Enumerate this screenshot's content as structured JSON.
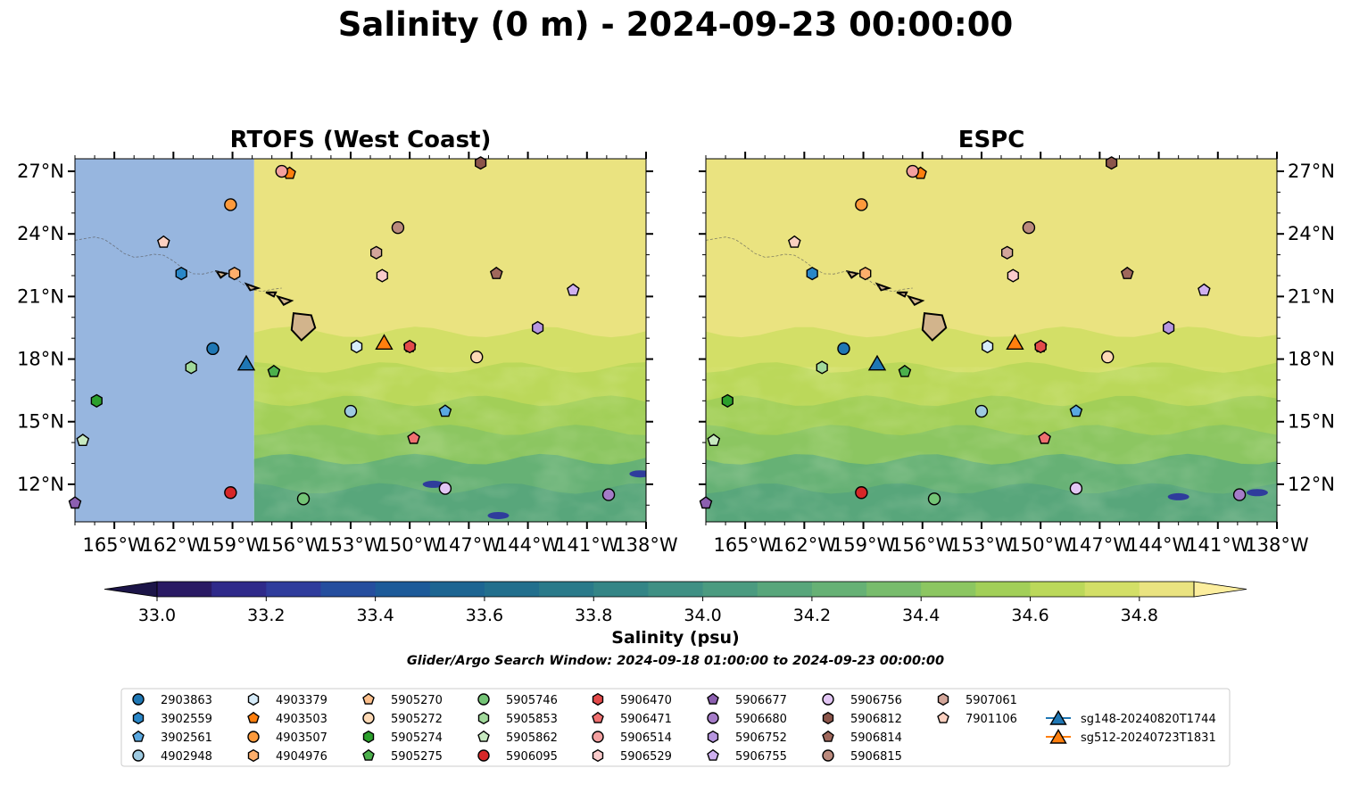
{
  "suptitle": "Salinity (0 m) - 2024-09-23 00:00:00",
  "panels": [
    {
      "title": "RTOFS (West Coast)"
    },
    {
      "title": "ESPC"
    }
  ],
  "colorbar": {
    "label": "Salinity (psu)",
    "ticks": [
      33.0,
      33.2,
      33.4,
      33.6,
      33.8,
      34.0,
      34.2,
      34.4,
      34.6,
      34.8
    ],
    "tick_labels": [
      "33.0",
      "33.2",
      "33.4",
      "33.6",
      "33.8",
      "34.0",
      "34.2",
      "34.4",
      "34.6",
      "34.8"
    ],
    "min": 33.0,
    "max": 34.9,
    "extend": "both",
    "colormap": "haline",
    "colors": [
      "#2a1a64",
      "#2f2a8a",
      "#2f3c9c",
      "#254e9e",
      "#1c5a99",
      "#1d6592",
      "#226f8d",
      "#2a7a8a",
      "#348586",
      "#3f9084",
      "#4b9b80",
      "#58a67b",
      "#66b175",
      "#78bc6c",
      "#8cc661",
      "#a2cf58",
      "#bbd85a",
      "#d3df67",
      "#eae380"
    ],
    "under_color": "#1c1548",
    "over_color": "#fcee9e"
  },
  "search_window": "Glider/Argo Search Window: 2024-09-18 01:00:00 to 2024-09-23 00:00:00",
  "chart_data": {
    "type": "map",
    "variable": "Salinity",
    "depth": "0 m",
    "units": "psu",
    "lon_range": [
      -167,
      -138
    ],
    "lat_range": [
      10.2,
      27.6
    ],
    "x_ticks": [
      -165,
      -162,
      -159,
      -156,
      -153,
      -150,
      -147,
      -144,
      -141,
      -138
    ],
    "x_tick_labels": [
      "165°W",
      "162°W",
      "159°W",
      "156°W",
      "153°W",
      "150°W",
      "147°W",
      "144°W",
      "141°W",
      "138°W"
    ],
    "y_ticks": [
      12,
      15,
      18,
      21,
      24,
      27
    ],
    "y_tick_labels": [
      "12°N",
      "15°N",
      "18°N",
      "21°N",
      "24°N",
      "27°N"
    ],
    "rtofs_domain_west_edge_lon": -157.9,
    "rtofs_nodata_color": "#97b6df",
    "land_color": "#d2b48c",
    "floats": [
      {
        "id": "2903863",
        "lon": -160.0,
        "lat": 18.5,
        "marker": "circle",
        "color": "#1f77b4"
      },
      {
        "id": "3902559",
        "lon": -161.6,
        "lat": 22.1,
        "marker": "hexagon",
        "color": "#2a87c8"
      },
      {
        "id": "3902561",
        "lon": -148.2,
        "lat": 15.5,
        "marker": "pentagon",
        "color": "#5aa8e0"
      },
      {
        "id": "4902948",
        "lon": -153.0,
        "lat": 15.5,
        "marker": "circle",
        "color": "#9ecae1"
      },
      {
        "id": "4903379",
        "lon": -152.7,
        "lat": 18.6,
        "marker": "hexagon",
        "color": "#d6ecfa"
      },
      {
        "id": "4903503",
        "lon": -156.1,
        "lat": 26.9,
        "marker": "pentagon",
        "color": "#ff7f0e"
      },
      {
        "id": "4903507",
        "lon": -159.1,
        "lat": 25.4,
        "marker": "circle",
        "color": "#fd9a3c"
      },
      {
        "id": "4904976",
        "lon": -158.9,
        "lat": 22.1,
        "marker": "hexagon",
        "color": "#fdae6b"
      },
      {
        "id": "5905270",
        "lon": -150.0,
        "lat": 18.6,
        "marker": "pentagon",
        "color": "#fdc08c"
      },
      {
        "id": "5905272",
        "lon": -146.6,
        "lat": 18.1,
        "marker": "circle",
        "color": "#fdd9b5"
      },
      {
        "id": "5905274",
        "lon": -165.9,
        "lat": 16.0,
        "marker": "hexagon",
        "color": "#2ca02c"
      },
      {
        "id": "5905275",
        "lon": -156.9,
        "lat": 17.4,
        "marker": "pentagon",
        "color": "#4cb04c"
      },
      {
        "id": "5905746",
        "lon": -155.4,
        "lat": 11.3,
        "marker": "circle",
        "color": "#74c476"
      },
      {
        "id": "5905853",
        "lon": -161.1,
        "lat": 17.6,
        "marker": "hexagon",
        "color": "#a1d99b"
      },
      {
        "id": "5905862",
        "lon": -166.6,
        "lat": 14.1,
        "marker": "pentagon",
        "color": "#c7e9c0"
      },
      {
        "id": "5906095",
        "lon": -159.1,
        "lat": 11.6,
        "marker": "circle",
        "color": "#d62728"
      },
      {
        "id": "5906470",
        "lon": -150.0,
        "lat": 18.6,
        "marker": "hexagon",
        "color": "#e34a4a"
      },
      {
        "id": "5906471",
        "lon": -149.8,
        "lat": 14.2,
        "marker": "pentagon",
        "color": "#f07070"
      },
      {
        "id": "5906514",
        "lon": -156.5,
        "lat": 27.0,
        "marker": "circle",
        "color": "#f4a0a0"
      },
      {
        "id": "5906529",
        "lon": -151.4,
        "lat": 22.0,
        "marker": "hexagon",
        "color": "#f9cbcb"
      },
      {
        "id": "5906677",
        "lon": -167.0,
        "lat": 11.1,
        "marker": "pentagon",
        "color": "#8c5fb0"
      },
      {
        "id": "5906680",
        "lon": -139.9,
        "lat": 11.5,
        "marker": "circle",
        "color": "#a57cc8"
      },
      {
        "id": "5906752",
        "lon": -143.5,
        "lat": 19.5,
        "marker": "hexagon",
        "color": "#b796e0"
      },
      {
        "id": "5906755",
        "lon": -141.7,
        "lat": 21.3,
        "marker": "pentagon",
        "color": "#cfb0f0"
      },
      {
        "id": "5906756",
        "lon": -148.2,
        "lat": 11.8,
        "marker": "circle",
        "color": "#e2c6f4"
      },
      {
        "id": "5906812",
        "lon": -146.4,
        "lat": 27.4,
        "marker": "hexagon",
        "color": "#8c564b"
      },
      {
        "id": "5906814",
        "lon": -145.6,
        "lat": 22.1,
        "marker": "pentagon",
        "color": "#a0685c"
      },
      {
        "id": "5906815",
        "lon": -150.6,
        "lat": 24.3,
        "marker": "circle",
        "color": "#bb8a7d"
      },
      {
        "id": "5907061",
        "lon": -151.7,
        "lat": 23.1,
        "marker": "hexagon",
        "color": "#d3a69a"
      },
      {
        "id": "7901106",
        "lon": -162.5,
        "lat": 23.6,
        "marker": "pentagon",
        "color": "#fbd0c0"
      }
    ],
    "gliders": [
      {
        "id": "sg148-20240820T1744",
        "lon": -158.3,
        "lat": 17.8,
        "marker": "triangle",
        "color": "#1f77b4"
      },
      {
        "id": "sg512-20240723T1831",
        "lon": -151.3,
        "lat": 18.8,
        "marker": "triangle",
        "color": "#ff7f0e"
      }
    ]
  }
}
